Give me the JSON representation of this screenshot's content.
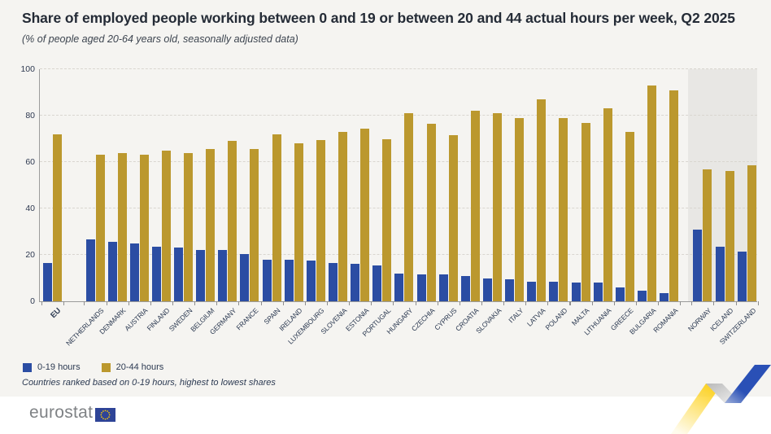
{
  "header": {
    "title": "Share of employed people working between 0 and 19 or between 20 and 44 actual hours per week, Q2 2025",
    "subtitle": "(% of people aged 20-64 years old, seasonally adjusted data)"
  },
  "chart_data": {
    "type": "bar",
    "title": "Share of employed people working between 0 and 19 or between 20 and 44 actual hours per week, Q2 2025",
    "subtitle": "(% of people aged 20-64 years old, seasonally adjusted data)",
    "xlabel": "",
    "ylabel": "",
    "ylim": [
      0,
      100
    ],
    "yticks": [
      0,
      20,
      40,
      60,
      80,
      100
    ],
    "grid": "horizontal-dashed",
    "legend_position": "bottom-left",
    "categories": [
      "EU",
      "Netherlands",
      "Denmark",
      "Austria",
      "Finland",
      "Sweden",
      "Belgium",
      "Germany",
      "France",
      "Spain",
      "Ireland",
      "Luxembourg",
      "Slovenia",
      "Estonia",
      "Portugal",
      "Hungary",
      "Czechia",
      "Cyprus",
      "Croatia",
      "Slovakia",
      "Italy",
      "Latvia",
      "Poland",
      "Malta",
      "Lithuania",
      "Greece",
      "Bulgaria",
      "Romania",
      "Norway",
      "Iceland",
      "Switzerland"
    ],
    "series": [
      {
        "name": "0-19 hours",
        "color": "#2b4da3",
        "values": [
          16.5,
          26.5,
          25.5,
          25,
          23.5,
          23,
          22,
          22,
          20.5,
          18,
          18,
          17.5,
          16.5,
          16,
          15.5,
          12,
          11.5,
          11.5,
          11,
          10,
          9.5,
          8.5,
          8.5,
          8,
          8,
          6,
          4.5,
          3.5,
          31,
          23.5,
          21.5
        ]
      },
      {
        "name": "20-44 hours",
        "color": "#bb982e",
        "values": [
          72,
          63,
          64,
          63,
          65,
          64,
          65.5,
          69,
          65.5,
          72,
          68,
          69.5,
          73,
          74.5,
          70,
          81,
          76.5,
          71.5,
          82,
          81,
          79,
          87,
          79,
          77,
          83,
          73,
          93,
          91,
          57,
          56,
          58.5
        ]
      }
    ],
    "bold_category": "EU",
    "highlight_group": {
      "members": [
        "Norway",
        "Iceland",
        "Switzerland"
      ],
      "background": "#e8e7e4"
    },
    "gap_before": "Norway"
  },
  "legend": {
    "items": [
      {
        "label": "0-19 hours",
        "color": "#2b4da3"
      },
      {
        "label": "20-44 hours",
        "color": "#bb982e"
      }
    ]
  },
  "footnote": "Countries ranked based on 0-19 hours,  highest to lowest shares",
  "footer": {
    "logo_text": "eurostat"
  },
  "colors": {
    "card_background": "#f5f4f1",
    "highlight_panel": "#e8e7e4",
    "grid": "#d9d6d0",
    "axis": "#9b9b9b",
    "text_dark": "#242b36",
    "text_navy": "#2c3a52",
    "logo_gray": "#7f8285",
    "flag_blue": "#2e4497",
    "star_yellow": "#ffcc00",
    "ribbon_yellow": "#fdd11b",
    "ribbon_blue": "#2a50b6",
    "ribbon_gray": "#c2c2c2"
  }
}
